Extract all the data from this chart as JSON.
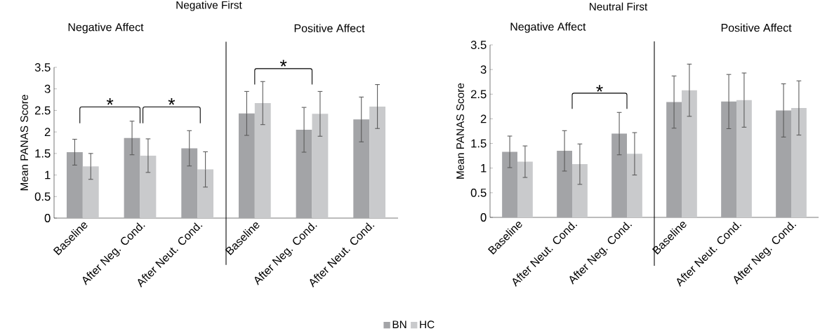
{
  "chart_data": [
    {
      "type": "bar",
      "title": "Negative First",
      "ylabel": "Mean PANAS Score",
      "categories": [
        "Baseline",
        "After Neg. Cond.",
        "After Neut. Cond.",
        "Baseline",
        "After Neg. Cond.",
        "After Neut. Cond."
      ],
      "series": [
        {
          "name": "BN",
          "color": "#a3a4a7",
          "values": [
            1.53,
            1.86,
            1.62,
            2.43,
            2.05,
            2.29
          ],
          "errors": [
            0.3,
            0.39,
            0.41,
            0.51,
            0.52,
            0.52
          ]
        },
        {
          "name": "HC",
          "color": "#c9cacc",
          "values": [
            1.2,
            1.45,
            1.13,
            2.67,
            2.42,
            2.59
          ],
          "errors": [
            0.3,
            0.39,
            0.41,
            0.5,
            0.52,
            0.51
          ]
        }
      ],
      "ylim": [
        0,
        3.5
      ],
      "yticks": [
        0,
        0.5,
        1,
        1.5,
        2,
        2.5,
        3,
        3.5
      ],
      "legend": "bottom",
      "annotations": [
        "Negative Affect",
        "Positive Affect",
        "*",
        "*",
        "*"
      ]
    },
    {
      "type": "bar",
      "title": "Neutral First",
      "ylabel": "Mean PANAS Score",
      "categories": [
        "Baseline",
        "After Neut. Cond.",
        "After Neg. Cond.",
        "Baseline",
        "After Neut. Cond.",
        "After Neg. Cond."
      ],
      "series": [
        {
          "color": "#a3a4a7",
          "values": [
            1.33,
            1.35,
            1.7,
            2.34,
            2.35,
            2.17
          ],
          "errors": [
            0.32,
            0.41,
            0.43,
            0.53,
            0.55,
            0.54
          ]
        },
        {
          "color": "#c9cacc",
          "values": [
            1.13,
            1.08,
            1.29,
            2.58,
            2.38,
            2.22
          ],
          "errors": [
            0.32,
            0.41,
            0.43,
            0.53,
            0.55,
            0.55
          ]
        }
      ],
      "ylim": [
        0,
        3.5
      ],
      "yticks": [
        0,
        0.5,
        1,
        1.5,
        2,
        2.5,
        3,
        3.5
      ],
      "annotations": [
        "Negative Affect",
        "Positive Affect",
        "*"
      ]
    }
  ]
}
